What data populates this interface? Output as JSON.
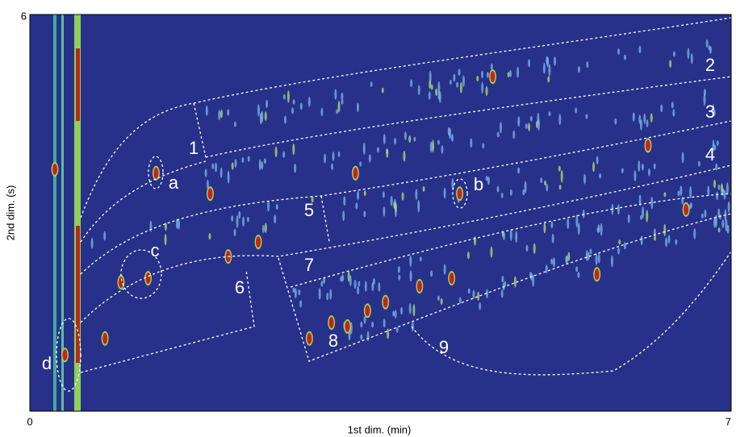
{
  "chart_data": {
    "type": "scatter",
    "xlabel": "1st dim. (min)",
    "ylabel": "2nd dim. (s)",
    "xlim": [
      0,
      7
    ],
    "ylim": [
      0,
      6
    ],
    "xticks": [
      0,
      7
    ],
    "yticks": [
      6
    ],
    "color": "#c8231a",
    "background": "#27318a",
    "x": [
      1.26,
      4.29,
      0.91,
      1.18,
      1.8,
      2.79,
      3.01,
      3.17,
      3.37,
      3.55,
      3.89,
      4.21,
      4.62,
      6.17,
      6.55,
      1.98,
      2.28,
      3.25,
      5.66,
      0.25,
      0.35,
      0.75
    ],
    "y": [
      3.6,
      3.29,
      1.95,
      2.01,
      3.29,
      1.1,
      1.34,
      1.28,
      1.52,
      1.65,
      1.89,
      2.01,
      5.06,
      4.02,
      3.05,
      2.34,
      2.56,
      3.6,
      2.07,
      3.66,
      0.85,
      1.1
    ],
    "annotations": [
      "1",
      "2",
      "3",
      "4",
      "5",
      "6",
      "7",
      "8",
      "9",
      "a",
      "b",
      "c",
      "d"
    ]
  }
}
